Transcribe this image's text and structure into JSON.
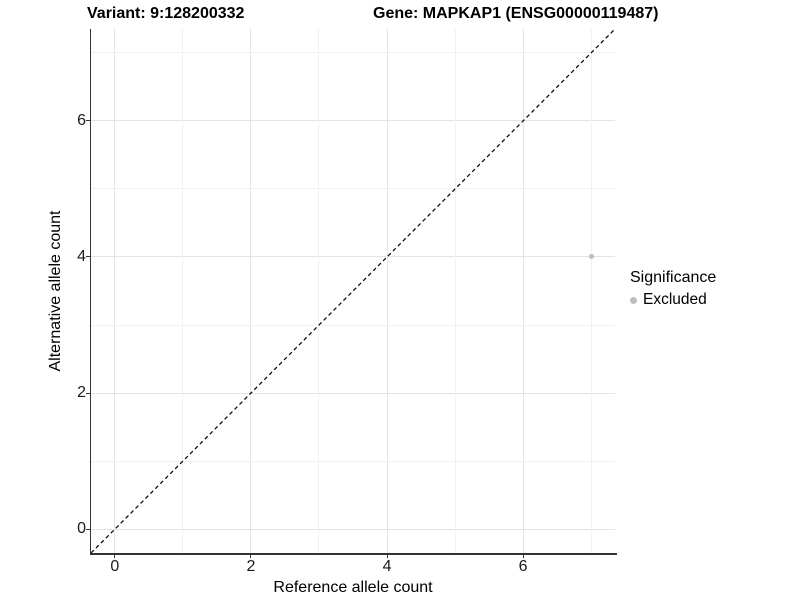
{
  "header": {
    "title_left": "Variant: 9:128200332",
    "title_right": "Gene: MAPKAP1 (ENSG00000119487)"
  },
  "chart_data": {
    "type": "scatter",
    "titles": [
      "Variant: 9:128200332",
      "Gene: MAPKAP1 (ENSG00000119487)"
    ],
    "xlabel": "Reference allele count",
    "ylabel": "Alternative allele count",
    "xlim": [
      -0.35,
      7.35
    ],
    "ylim": [
      -0.35,
      7.35
    ],
    "x_ticks": [
      0,
      2,
      4,
      6
    ],
    "y_ticks": [
      0,
      2,
      4,
      6
    ],
    "x_minor_ticks": [
      1,
      3,
      5,
      7
    ],
    "y_minor_ticks": [
      1,
      3,
      5,
      7
    ],
    "grid": "major+minor",
    "reference_line": {
      "type": "identity y=x",
      "style": "dashed",
      "color": "#000000"
    },
    "series": [
      {
        "name": "Excluded",
        "color": "#bebebe",
        "points": [
          {
            "x": 7,
            "y": 4
          }
        ]
      }
    ],
    "legend": {
      "title": "Significance",
      "position": "right",
      "items": [
        {
          "label": "Excluded",
          "color": "#bebebe"
        }
      ]
    }
  },
  "colors": {
    "background": "#ffffff",
    "axis_line": "#333333",
    "grid_major": "#e4e4e4",
    "grid_minor": "#f2f2f2",
    "point": "#bebebe",
    "text": "#000000"
  }
}
